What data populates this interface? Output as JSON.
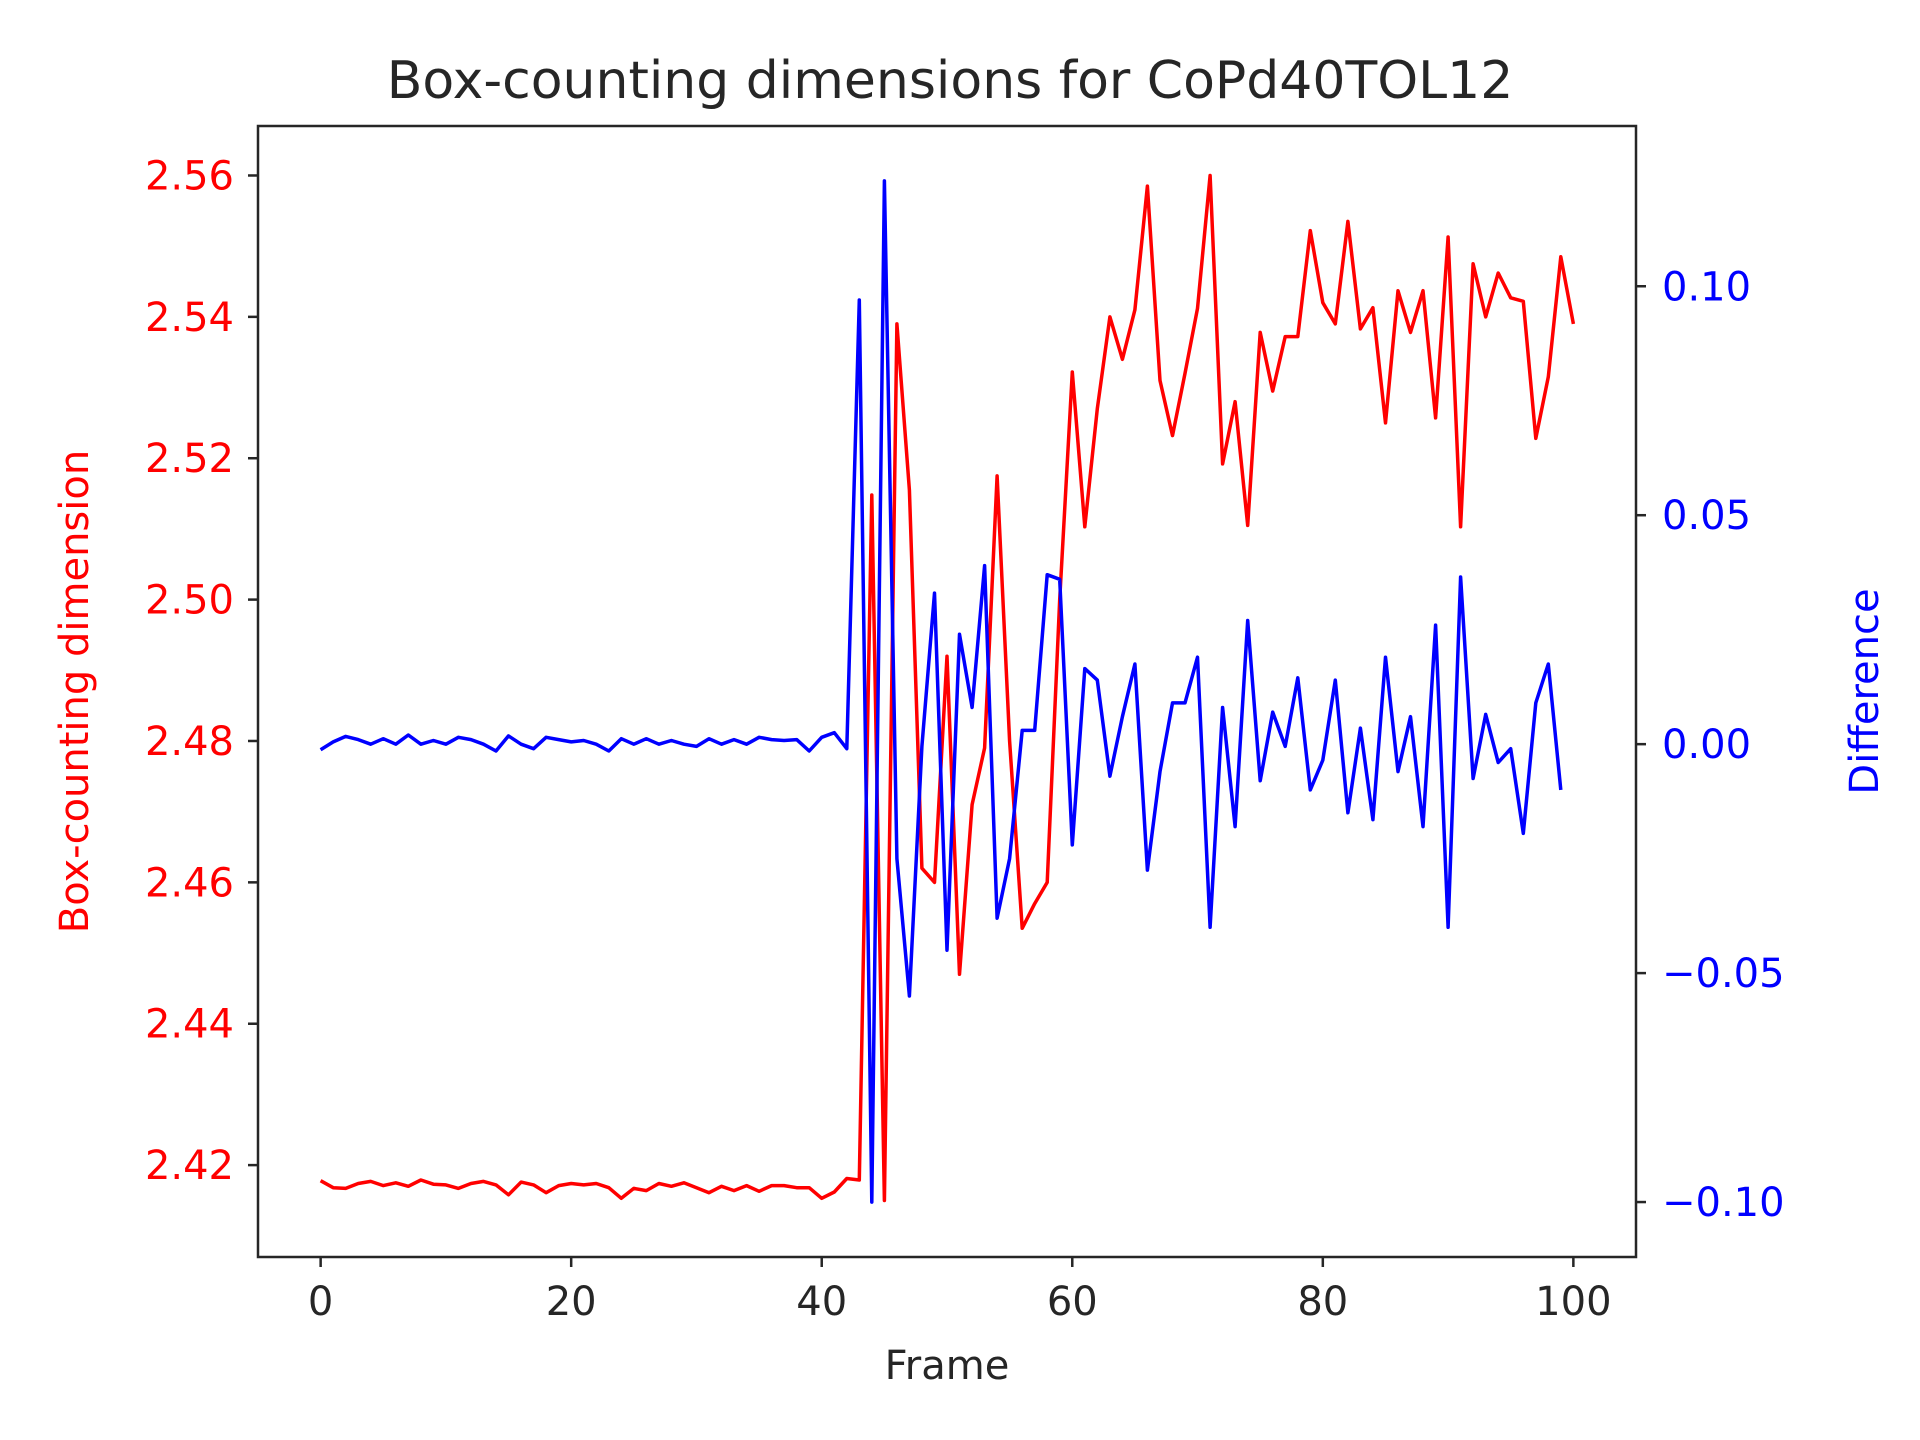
{
  "chart_data": {
    "type": "line",
    "title": "Box-counting dimensions for CoPd40TOL12",
    "xlabel": "Frame",
    "ylabel_left": "Box-counting dimension",
    "ylabel_right": "Difference",
    "xlim": [
      -5,
      105
    ],
    "ylim_left": [
      2.407,
      2.567
    ],
    "ylim_right": [
      -0.112,
      0.135
    ],
    "xticks": [
      0,
      20,
      40,
      60,
      80,
      100
    ],
    "yticks_left": [
      2.42,
      2.44,
      2.46,
      2.48,
      2.5,
      2.52,
      2.54,
      2.56
    ],
    "yticks_right": [
      -0.1,
      -0.05,
      0.0,
      0.05,
      0.1
    ],
    "xtick_labels": [
      "0",
      "20",
      "40",
      "60",
      "80",
      "100"
    ],
    "ytick_labels_left": [
      "2.42",
      "2.44",
      "2.46",
      "2.48",
      "2.50",
      "2.52",
      "2.54",
      "2.56"
    ],
    "ytick_labels_right": [
      "−0.10",
      "−0.05",
      "0.00",
      "0.05",
      "0.10"
    ],
    "grid": false,
    "colors": {
      "left": "#ff0000",
      "right": "#0000ff",
      "axis": "#262626"
    },
    "series": [
      {
        "axis": "left",
        "color": "#ff0000",
        "x_start": 0,
        "values": [
          2.4178,
          2.4168,
          2.4167,
          2.4174,
          2.4177,
          2.4171,
          2.4175,
          2.417,
          2.4179,
          2.4173,
          2.4172,
          2.4167,
          2.4174,
          2.4177,
          2.4172,
          2.4158,
          2.4176,
          2.4172,
          2.4161,
          2.4171,
          2.4174,
          2.4172,
          2.4174,
          2.4168,
          2.4153,
          2.4167,
          2.4164,
          2.4174,
          2.417,
          2.4175,
          2.4168,
          2.4161,
          2.417,
          2.4164,
          2.4171,
          2.4163,
          2.4171,
          2.4171,
          2.4168,
          2.4168,
          2.4153,
          2.4162,
          2.4181,
          2.4179,
          2.5148,
          2.415,
          2.539,
          2.5155,
          2.462,
          2.46,
          2.492,
          2.447,
          2.471,
          2.479,
          2.5175,
          2.48,
          2.4535,
          2.457,
          2.46,
          2.5,
          2.5322,
          2.5103,
          2.527,
          2.54,
          2.534,
          2.541,
          2.5585,
          2.531,
          2.5232,
          2.532,
          2.5412,
          2.56,
          2.5192,
          2.528,
          2.5105,
          2.5378,
          2.5295,
          2.5372,
          2.5372,
          2.5522,
          2.542,
          2.539,
          2.5535,
          2.5383,
          2.5413,
          2.525,
          2.5437,
          2.5378,
          2.5437,
          2.5257,
          2.5513,
          2.5103,
          2.5475,
          2.54,
          2.5462,
          2.5427,
          2.5422,
          2.5228,
          2.5315,
          2.5485,
          2.539
        ]
      },
      {
        "axis": "right",
        "color": "#0000ff",
        "x_start": 0,
        "values": [
          -0.0012,
          0.0005,
          0.0017,
          0.001,
          0.0,
          0.0012,
          0.0,
          0.002,
          0.0,
          0.0008,
          0.0,
          0.0015,
          0.001,
          0.0,
          -0.0015,
          0.0018,
          0.0,
          -0.001,
          0.0015,
          0.001,
          0.0005,
          0.0008,
          0.0,
          -0.0015,
          0.0012,
          0.0,
          0.0012,
          0.0,
          0.0008,
          0.0,
          -0.0005,
          0.0012,
          0.0,
          0.001,
          0.0,
          0.0015,
          0.001,
          0.0008,
          0.001,
          -0.0015,
          0.0015,
          0.0025,
          -0.001,
          0.097,
          -0.1,
          0.123,
          -0.025,
          -0.055,
          -0.0005,
          0.033,
          -0.045,
          0.024,
          0.008,
          0.039,
          -0.038,
          -0.025,
          0.003,
          0.003,
          0.037,
          0.036,
          -0.022,
          0.0165,
          0.014,
          -0.007,
          0.006,
          0.0175,
          -0.0275,
          -0.006,
          0.009,
          0.009,
          0.019,
          -0.04,
          0.008,
          -0.018,
          0.027,
          -0.008,
          0.007,
          -0.0005,
          0.0145,
          -0.01,
          -0.0035,
          0.014,
          -0.015,
          0.0035,
          -0.0165,
          0.019,
          -0.006,
          0.006,
          -0.018,
          0.026,
          -0.04,
          0.0365,
          -0.0075,
          0.0065,
          -0.004,
          -0.001,
          -0.0195,
          0.009,
          0.0175,
          -0.01
        ]
      }
    ]
  }
}
